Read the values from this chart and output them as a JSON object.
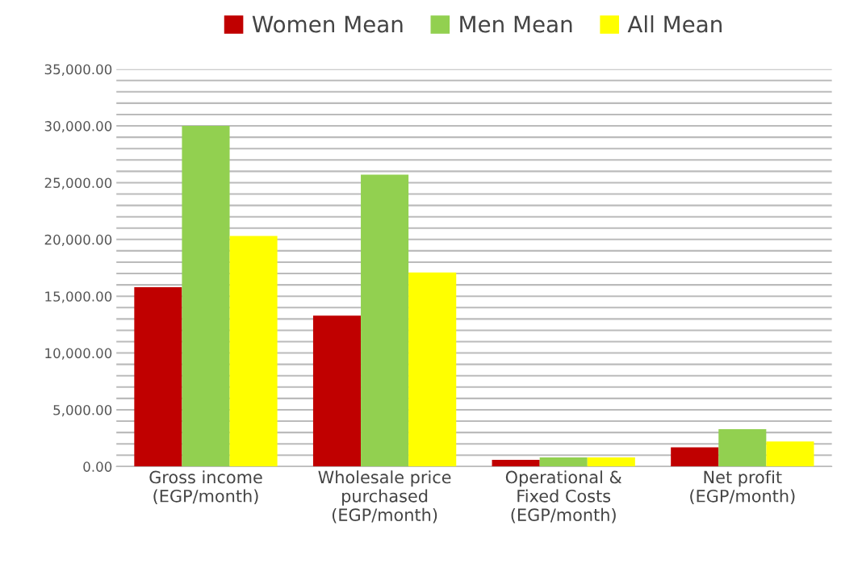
{
  "chart_data": {
    "type": "bar",
    "categories": [
      "Gross income\n(EGP/month)",
      "Wholesale price\npurchased\n(EGP/month)",
      "Operational &\nFixed Costs\n(EGP/month)",
      "Net profit\n(EGP/month)"
    ],
    "series": [
      {
        "name": "Women Mean",
        "color": "#c00000",
        "values": [
          15800,
          13300,
          600,
          1700
        ]
      },
      {
        "name": "Men Mean",
        "color": "#92d050",
        "values": [
          30000,
          25700,
          800,
          3300
        ]
      },
      {
        "name": "All Mean",
        "color": "#ffff00",
        "values": [
          20300,
          17100,
          800,
          2200
        ]
      }
    ],
    "ylim": [
      0,
      35000
    ],
    "yticks": [
      {
        "value": 0,
        "label": "0.00"
      },
      {
        "value": 1000,
        "label": null
      },
      {
        "value": 2000,
        "label": null
      },
      {
        "value": 3000,
        "label": null
      },
      {
        "value": 4000,
        "label": null
      },
      {
        "value": 5000,
        "label": "5,000.00"
      },
      {
        "value": 6000,
        "label": null
      },
      {
        "value": 7000,
        "label": null
      },
      {
        "value": 8000,
        "label": null
      },
      {
        "value": 9000,
        "label": null
      },
      {
        "value": 10000,
        "label": "10,000.00"
      },
      {
        "value": 11000,
        "label": null
      },
      {
        "value": 12000,
        "label": null
      },
      {
        "value": 13000,
        "label": null
      },
      {
        "value": 14000,
        "label": null
      },
      {
        "value": 15000,
        "label": "15,000.00"
      },
      {
        "value": 16000,
        "label": null
      },
      {
        "value": 17000,
        "label": null
      },
      {
        "value": 18000,
        "label": null
      },
      {
        "value": 19000,
        "label": null
      },
      {
        "value": 20000,
        "label": "20,000.00"
      },
      {
        "value": 21000,
        "label": null
      },
      {
        "value": 22000,
        "label": null
      },
      {
        "value": 23000,
        "label": null
      },
      {
        "value": 24000,
        "label": null
      },
      {
        "value": 25000,
        "label": "25,000.00"
      },
      {
        "value": 26000,
        "label": null
      },
      {
        "value": 27000,
        "label": null
      },
      {
        "value": 28000,
        "label": null
      },
      {
        "value": 29000,
        "label": null
      },
      {
        "value": 30000,
        "label": "30,000.00"
      },
      {
        "value": 31000,
        "label": null
      },
      {
        "value": 32000,
        "label": null
      },
      {
        "value": 33000,
        "label": null
      },
      {
        "value": 34000,
        "label": null
      },
      {
        "value": 35000,
        "label": "35,000.00"
      }
    ],
    "grid": "y",
    "legend": "top"
  }
}
